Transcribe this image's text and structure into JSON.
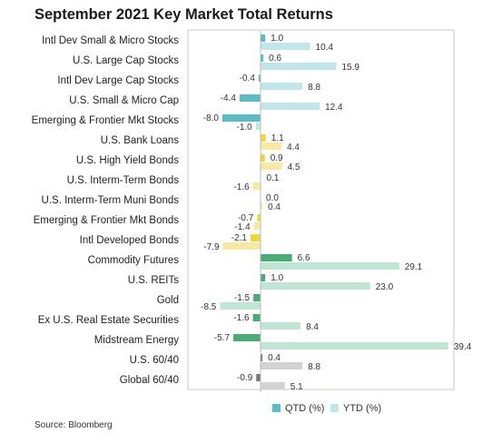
{
  "title": "September 2021 Key Market Total Returns",
  "source": "Source: Bloomberg",
  "chart_data": {
    "type": "bar",
    "orientation": "horizontal",
    "title": "September 2021 Key Market Total Returns",
    "categories": [
      "Intl Dev Small & Micro Stocks",
      "U.S. Large Cap Stocks",
      "Intl Dev Large Cap Stocks",
      "U.S. Small & Micro Cap",
      "Emerging & Frontier Mkt Stocks",
      "U.S. Bank Loans",
      "U.S. High Yield Bonds",
      "U.S. Interm-Term Bonds",
      "U.S. Interm-Term Muni Bonds",
      "Emerging & Frontier Mkt Bonds",
      "Intl Developed Bonds",
      "Commodity Futures",
      "U.S. REITs",
      "Gold",
      "Ex U.S. Real Estate Securities",
      "Midstream Energy",
      "U.S. 60/40",
      "Global 60/40"
    ],
    "series": [
      {
        "name": "QTD (%)",
        "values": [
          1.0,
          0.6,
          -0.4,
          -4.4,
          -8.0,
          1.1,
          0.9,
          0.1,
          0.0,
          -0.7,
          -2.1,
          6.6,
          1.0,
          -1.5,
          -1.6,
          -5.7,
          0.4,
          -0.9
        ]
      },
      {
        "name": "YTD (%)",
        "values": [
          10.4,
          15.9,
          8.8,
          12.4,
          -1.0,
          4.4,
          4.5,
          -1.6,
          0.4,
          -1.4,
          -7.9,
          29.1,
          23.0,
          -8.5,
          8.4,
          39.4,
          8.8,
          5.1
        ]
      }
    ],
    "value_labels_qtd": [
      "1.0",
      "0.6",
      "-0.4",
      "-4.4",
      "-8.0",
      "1.1",
      "0.9",
      "0.1",
      "0.0",
      "-0.7",
      "-2.1",
      "6.6",
      "1.0",
      "-1.5",
      "-1.6",
      "-5.7",
      "0.4",
      "-0.9"
    ],
    "value_labels_ytd": [
      "10.4",
      "15.9",
      "8.8",
      "12.4",
      "-1.0",
      "4.4",
      "4.5",
      "-1.6",
      "0.4",
      "-1.4",
      "-7.9",
      "29.1",
      "23.0",
      "-8.5",
      "8.4",
      "39.4",
      "8.8",
      "5.1"
    ],
    "groups": [
      {
        "name": "equities",
        "rows": [
          0,
          4
        ],
        "qtd_color": "#5bbcc6",
        "ytd_color": "#bfe6ea"
      },
      {
        "name": "fixed-income",
        "rows": [
          5,
          10
        ],
        "qtd_color": "#f2d43d",
        "ytd_color": "#f8e8a0"
      },
      {
        "name": "real-assets",
        "rows": [
          11,
          15
        ],
        "qtd_color": "#4aab77",
        "ytd_color": "#bfe6d2"
      },
      {
        "name": "balanced",
        "rows": [
          16,
          17
        ],
        "qtd_color": "#777777",
        "ytd_color": "#d2d2d2"
      }
    ],
    "legend": {
      "placement": "bottom-center",
      "items": [
        {
          "label": "QTD (%)",
          "color": "#5bbcc6"
        },
        {
          "label": "YTD (%)",
          "color": "#bfe6ea"
        }
      ]
    },
    "grid": false
  }
}
